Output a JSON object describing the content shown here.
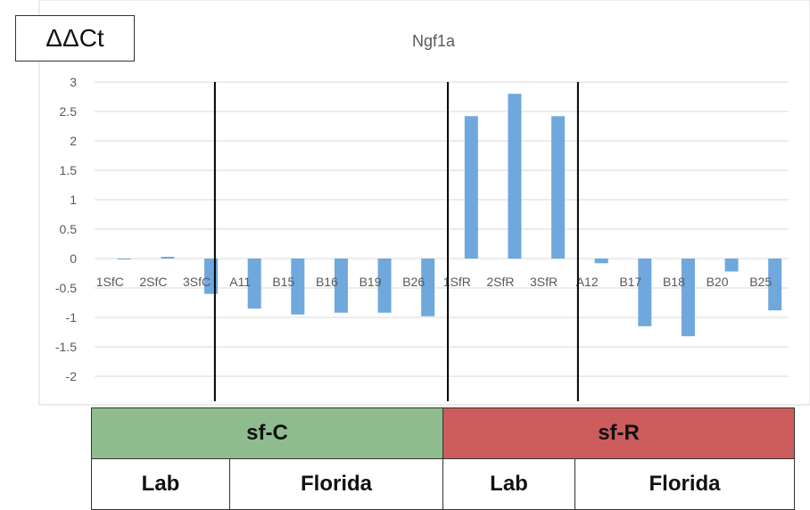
{
  "corner_label": "ΔΔCt",
  "chart_data": {
    "type": "bar",
    "title": "Ngf1a",
    "categories": [
      "1SfC",
      "2SfC",
      "3SfC",
      "A11",
      "B15",
      "B16",
      "B19",
      "B26",
      "1SfR",
      "2SfR",
      "3SfR",
      "A12",
      "B17",
      "B18",
      "B20",
      "B25"
    ],
    "values": [
      0,
      0.03,
      -0.6,
      -0.85,
      -0.95,
      -0.92,
      -0.92,
      -0.98,
      2.42,
      2.8,
      2.42,
      -0.08,
      -1.15,
      -1.32,
      -0.22,
      -0.88
    ],
    "ylim": [
      -2,
      3
    ],
    "yticks": [
      "3",
      "2.5",
      "2",
      "1.5",
      "1",
      "0.5",
      "0",
      "-0.5",
      "-1",
      "-1.5",
      "-2"
    ],
    "xlabel": "",
    "ylabel": "",
    "grid": true,
    "bar_color": "#6fa8dc",
    "group_dividers_after": [
      3,
      8,
      11
    ]
  },
  "groups": {
    "top": [
      {
        "label": "sf-C",
        "color": "#8fbc8f"
      },
      {
        "label": "sf-R",
        "color": "#cd5c5c"
      }
    ],
    "bottom": [
      "Lab",
      "Florida",
      "Lab",
      "Florida"
    ]
  }
}
